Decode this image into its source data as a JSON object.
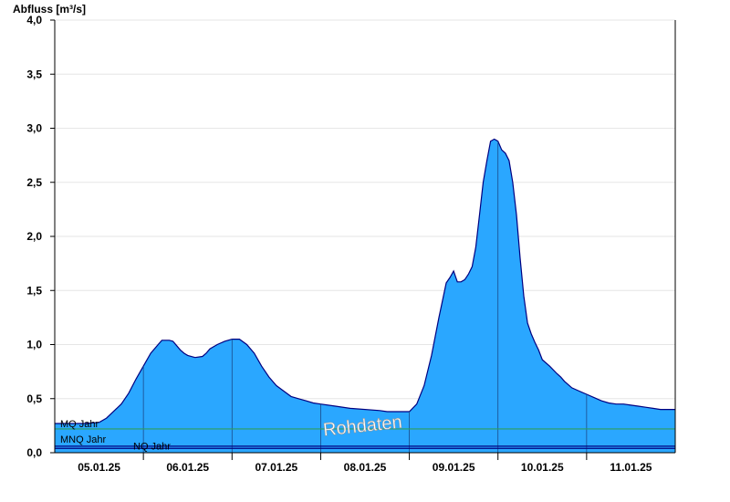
{
  "chart_data": {
    "type": "area",
    "ylabel": "Abfluss [m³/s]",
    "ylim": [
      0,
      4.0
    ],
    "xlim": [
      "05.01.25 00:00",
      "12.01.25 00:00"
    ],
    "grid": true,
    "watermark": "Rohdaten",
    "y_ticks": [
      "0,0",
      "0,5",
      "1,0",
      "1,5",
      "2,0",
      "2,5",
      "3,0",
      "3,5",
      "4,0"
    ],
    "y_tick_values": [
      0,
      0.5,
      1.0,
      1.5,
      2.0,
      2.5,
      3.0,
      3.5,
      4.0
    ],
    "x_ticks": [
      "05.01.25",
      "06.01.25",
      "07.01.25",
      "08.01.25",
      "09.01.25",
      "10.01.25",
      "11.01.25"
    ],
    "x_tick_hours": [
      12,
      36,
      60,
      84,
      108,
      132,
      156
    ],
    "day_boundary_hours": [
      24,
      48,
      72,
      96,
      120,
      144
    ],
    "reference_lines": [
      {
        "label": "MQ Jahr",
        "value": 0.22,
        "color": "#2e9e5e"
      },
      {
        "label": "MNQ Jahr",
        "value": 0.06,
        "color": "#000080"
      },
      {
        "label": "NQ Jahr",
        "value": 0.04,
        "color": "#000080"
      }
    ],
    "series": [
      {
        "fill_color": "#2aa7ff",
        "line_color": "#000080",
        "x_hours": [
          0,
          8,
          12,
          14,
          18,
          20,
          22,
          24,
          26,
          28,
          29,
          30,
          31,
          32,
          33,
          34,
          35,
          36,
          38,
          40,
          41,
          42,
          44,
          46,
          48,
          50,
          52,
          54,
          56,
          58,
          60,
          62,
          64,
          66,
          68,
          70,
          72,
          76,
          80,
          88,
          90,
          93,
          96,
          98,
          100,
          102,
          104,
          106,
          107,
          108,
          109,
          110,
          111,
          112,
          113,
          114,
          115,
          116,
          117,
          118,
          119,
          120,
          121,
          122,
          123,
          124,
          125,
          126,
          127,
          128,
          129,
          130,
          131,
          132,
          134,
          136,
          137,
          138,
          139,
          140,
          142,
          144,
          146,
          148,
          150,
          152,
          154,
          156,
          158,
          160,
          162,
          164,
          166,
          168
        ],
        "values": [
          0.27,
          0.27,
          0.28,
          0.32,
          0.45,
          0.55,
          0.68,
          0.8,
          0.92,
          1.0,
          1.04,
          1.04,
          1.04,
          1.03,
          0.99,
          0.95,
          0.92,
          0.9,
          0.88,
          0.89,
          0.92,
          0.96,
          1.0,
          1.03,
          1.05,
          1.05,
          1.0,
          0.92,
          0.8,
          0.7,
          0.62,
          0.57,
          0.52,
          0.5,
          0.48,
          0.46,
          0.45,
          0.43,
          0.41,
          0.39,
          0.38,
          0.38,
          0.38,
          0.45,
          0.62,
          0.9,
          1.25,
          1.57,
          1.62,
          1.68,
          1.58,
          1.58,
          1.6,
          1.65,
          1.72,
          1.9,
          2.2,
          2.5,
          2.7,
          2.88,
          2.9,
          2.88,
          2.8,
          2.77,
          2.7,
          2.5,
          2.2,
          1.8,
          1.45,
          1.2,
          1.1,
          1.02,
          0.95,
          0.86,
          0.8,
          0.73,
          0.7,
          0.66,
          0.63,
          0.6,
          0.57,
          0.54,
          0.51,
          0.48,
          0.46,
          0.45,
          0.45,
          0.44,
          0.43,
          0.42,
          0.41,
          0.4,
          0.4,
          0.4
        ]
      }
    ]
  }
}
